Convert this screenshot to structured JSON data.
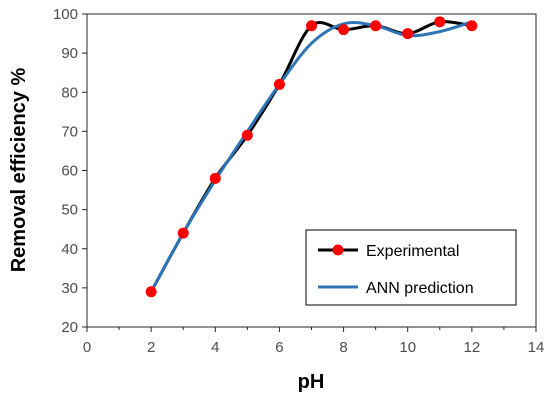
{
  "chart_data": {
    "type": "line",
    "xlabel": "pH",
    "ylabel": "Removal efficiency %",
    "xlim": [
      0,
      14
    ],
    "ylim": [
      20,
      100
    ],
    "x_ticks": [
      0,
      2,
      4,
      6,
      8,
      10,
      12,
      14
    ],
    "y_ticks": [
      20,
      30,
      40,
      50,
      60,
      70,
      80,
      90,
      100
    ],
    "grid": false,
    "legend_position": "bottom-right",
    "series": [
      {
        "name": "Experimental",
        "style": "smoothed line with markers",
        "color": "#000000",
        "marker_color": "#ff0000",
        "x": [
          2,
          3,
          4,
          5,
          6,
          7,
          8,
          9,
          10,
          11,
          12
        ],
        "y": [
          29,
          44,
          58,
          69,
          82,
          97,
          96,
          97,
          95,
          98,
          97
        ]
      },
      {
        "name": "ANN prediction",
        "style": "smoothed line",
        "color": "#2e75b6",
        "x": [
          2,
          3,
          4,
          5,
          6,
          7,
          8,
          9,
          10,
          11,
          12
        ],
        "y": [
          29,
          44,
          57.5,
          70,
          82,
          92.5,
          97.5,
          97,
          94.5,
          95.5,
          98
        ]
      }
    ]
  }
}
